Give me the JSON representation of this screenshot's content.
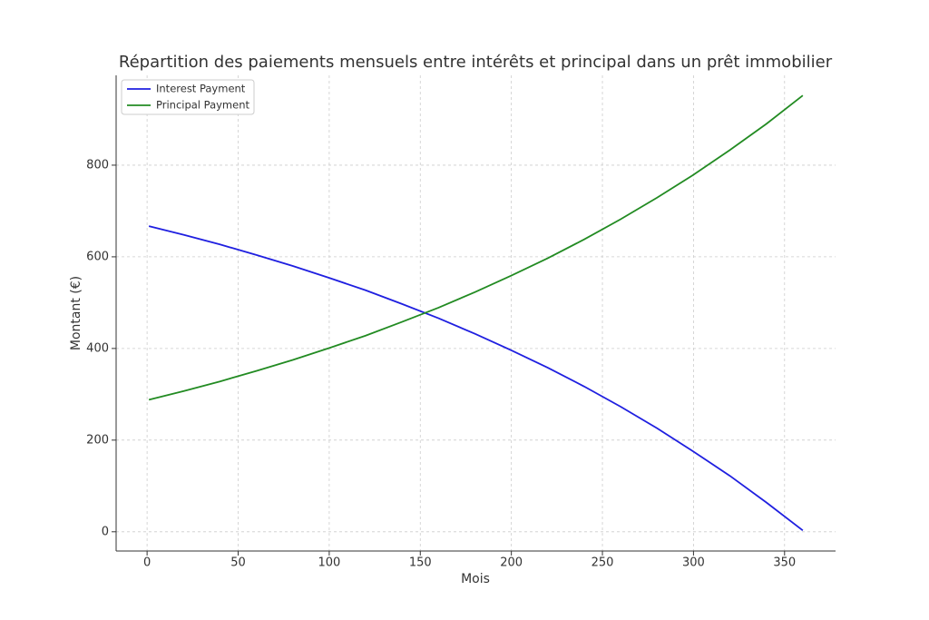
{
  "chart_data": {
    "type": "line",
    "title": "Répartition des paiements mensuels entre intérêts et principal dans un prêt immobilier",
    "xlabel": "Mois",
    "ylabel": "Montant (€)",
    "x": [
      1,
      20,
      40,
      60,
      80,
      100,
      120,
      140,
      160,
      180,
      200,
      220,
      240,
      260,
      280,
      300,
      320,
      340,
      360
    ],
    "series": [
      {
        "name": "Interest Payment",
        "color": "#1f1fe0",
        "values": [
          667,
          648,
          627,
          604,
          580,
          554,
          527,
          497,
          466,
          432,
          396,
          358,
          317,
          273,
          226,
          175,
          122,
          64,
          3
        ]
      },
      {
        "name": "Principal Payment",
        "color": "#228b22",
        "values": [
          288,
          307,
          328,
          351,
          375,
          401,
          428,
          458,
          489,
          523,
          559,
          597,
          638,
          682,
          729,
          779,
          833,
          890,
          952
        ]
      }
    ],
    "xlim": [
      -17,
      378
    ],
    "xticks": [
      0,
      50,
      100,
      150,
      200,
      250,
      300,
      350
    ],
    "ylim": [
      -42,
      996
    ],
    "yticks": [
      0,
      200,
      400,
      600,
      800
    ],
    "grid": true,
    "legend": "upper left"
  }
}
